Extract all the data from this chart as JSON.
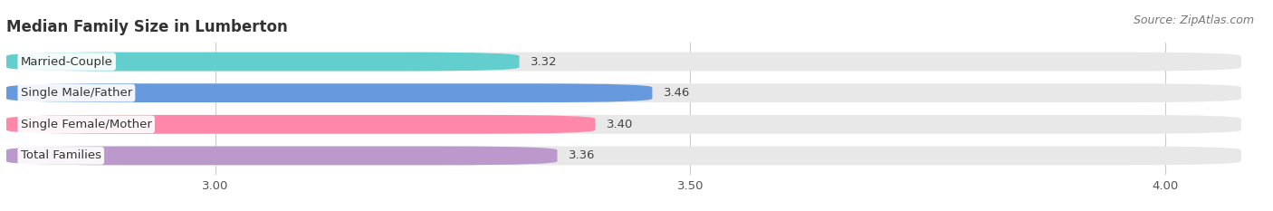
{
  "title": "Median Family Size in Lumberton",
  "source": "Source: ZipAtlas.com",
  "categories": [
    "Married-Couple",
    "Single Male/Father",
    "Single Female/Mother",
    "Total Families"
  ],
  "values": [
    3.32,
    3.46,
    3.4,
    3.36
  ],
  "bar_colors": [
    "#62cece",
    "#6699dd",
    "#ff88aa",
    "#bb99cc"
  ],
  "bar_bg_color": "#e8e8e8",
  "xlim_min": 2.78,
  "xlim_max": 4.08,
  "xstart": 2.78,
  "xticks": [
    3.0,
    3.5,
    4.0
  ],
  "xtick_labels": [
    "3.00",
    "3.50",
    "4.00"
  ],
  "background_color": "#ffffff",
  "title_fontsize": 12,
  "label_fontsize": 9.5,
  "value_fontsize": 9.5,
  "source_fontsize": 9
}
